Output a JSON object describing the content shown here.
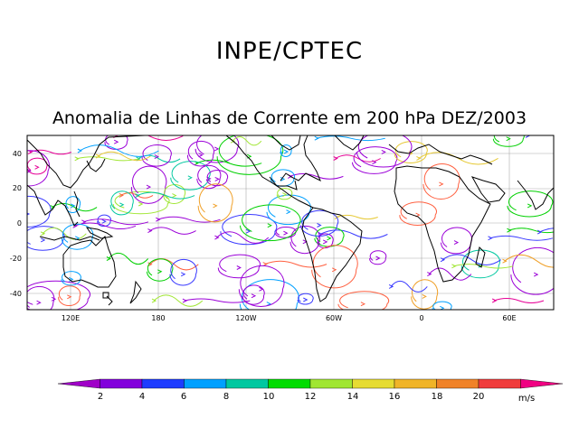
{
  "header": {
    "title": "INPE/CPTEC"
  },
  "map": {
    "title": "Anomalia de Linhas de Corrente em 200 hPa DEZ/2003",
    "lat_ticks": [
      "40",
      "20",
      "0",
      "-20",
      "-40"
    ],
    "lon_ticks": [
      "120E",
      "180",
      "120W",
      "60W",
      "0",
      "60E"
    ],
    "streamline_palette": [
      "#9b00d8",
      "#3a3aff",
      "#00a0ff",
      "#00c8a0",
      "#00d000",
      "#a0e632",
      "#e6c832",
      "#f0a028",
      "#ff6040",
      "#e60096"
    ]
  },
  "colorbar": {
    "unit": "m/s",
    "labels": [
      "2",
      "4",
      "6",
      "8",
      "10",
      "12",
      "14",
      "16",
      "18",
      "20"
    ],
    "colors": [
      "#a000c8",
      "#8200dc",
      "#1e3cff",
      "#00a0ff",
      "#00c8a0",
      "#00dc00",
      "#a0e632",
      "#e6dc32",
      "#f0b428",
      "#f08228",
      "#f03c3c",
      "#f00082"
    ]
  }
}
